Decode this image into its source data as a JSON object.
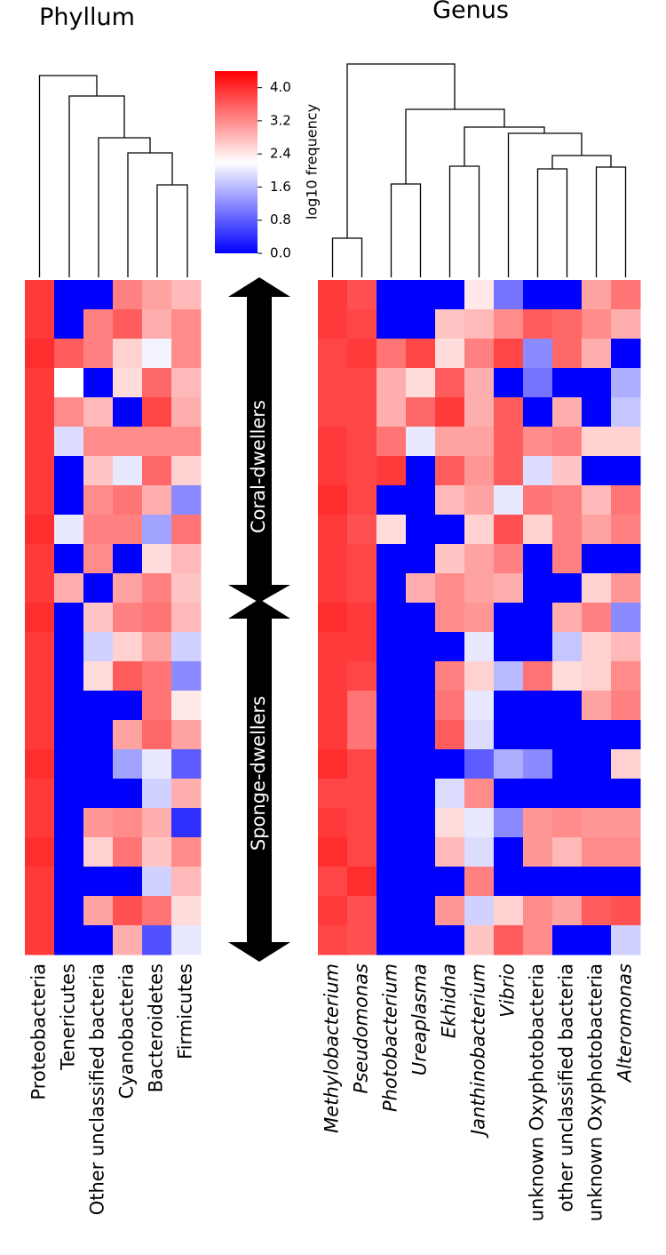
{
  "chart_data": [
    {
      "type": "heatmap",
      "title": "Phyllum",
      "series": [
        {
          "name": "Proteobacteria",
          "values": [
            3.9,
            3.9,
            4.0,
            3.9,
            3.9,
            3.9,
            3.9,
            3.9,
            4.0,
            3.9,
            3.9,
            4.0,
            3.9,
            3.9,
            3.9,
            3.9,
            4.0,
            3.9,
            3.9,
            4.0,
            3.9,
            3.9,
            3.9
          ]
        },
        {
          "name": "Tenericutes",
          "values": [
            0,
            0,
            3.6,
            2.2,
            3.2,
            1.9,
            0,
            0,
            2.0,
            0,
            2.9,
            0,
            0,
            0,
            0,
            0,
            0,
            0,
            0,
            0,
            0,
            0,
            0
          ]
        },
        {
          "name": "Other unclassified bacteria",
          "values": [
            0,
            3.3,
            3.3,
            0,
            2.8,
            3.2,
            2.7,
            3.2,
            3.3,
            3.2,
            0,
            2.7,
            1.8,
            2.5,
            0,
            0,
            0,
            0,
            3.1,
            2.6,
            0,
            3.0,
            0
          ]
        },
        {
          "name": "Cyanobacteria",
          "values": [
            3.3,
            3.6,
            2.6,
            2.5,
            0,
            3.2,
            2.0,
            3.4,
            3.3,
            0,
            3.0,
            3.3,
            2.6,
            3.6,
            0,
            3.0,
            1.4,
            0,
            3.2,
            3.4,
            0,
            3.7,
            2.9
          ]
        },
        {
          "name": "Bacteroidetes",
          "values": [
            3.0,
            2.9,
            2.1,
            3.5,
            3.8,
            3.2,
            3.5,
            2.9,
            1.4,
            2.5,
            3.3,
            3.4,
            3.0,
            3.4,
            3.4,
            3.5,
            2.0,
            1.8,
            2.9,
            2.7,
            1.8,
            3.4,
            0.7
          ]
        },
        {
          "name": "Firmicutes",
          "values": [
            2.8,
            3.2,
            3.2,
            2.8,
            2.9,
            3.2,
            2.6,
            1.2,
            3.4,
            2.8,
            2.7,
            2.8,
            1.8,
            1.2,
            2.4,
            3.0,
            0.8,
            2.9,
            0.4,
            3.2,
            2.8,
            2.5,
            2.0
          ]
        }
      ]
    },
    {
      "type": "heatmap",
      "title": "Genus",
      "series": [
        {
          "name": "Methylobacterium",
          "values": [
            3.9,
            3.9,
            3.8,
            3.8,
            3.8,
            3.9,
            3.9,
            4.0,
            3.9,
            3.9,
            3.9,
            4.0,
            3.9,
            3.9,
            3.9,
            3.9,
            4.0,
            3.8,
            3.9,
            4.0,
            3.8,
            3.9,
            3.8
          ]
        },
        {
          "name": "Pseudomonas",
          "values": [
            3.7,
            3.8,
            3.9,
            3.8,
            3.8,
            3.8,
            3.8,
            3.8,
            3.7,
            3.8,
            3.8,
            3.9,
            3.9,
            3.8,
            3.4,
            3.4,
            3.8,
            3.8,
            3.8,
            3.8,
            4.0,
            3.7,
            3.7
          ]
        },
        {
          "name": "Photobacterium",
          "values": [
            0,
            0,
            3.4,
            2.9,
            2.9,
            3.4,
            3.9,
            0,
            2.5,
            0,
            0,
            0,
            0,
            0,
            0,
            0,
            0,
            0,
            0,
            0,
            0,
            0,
            0
          ]
        },
        {
          "name": "Ureaplasma",
          "values": [
            0,
            0,
            3.8,
            2.5,
            3.5,
            2.0,
            0,
            0,
            0,
            0,
            2.9,
            0,
            0,
            0,
            0,
            0,
            0,
            0,
            0,
            0,
            0,
            0,
            0
          ]
        },
        {
          "name": "Ekhidna",
          "values": [
            0,
            2.7,
            2.5,
            3.6,
            3.9,
            3.0,
            3.6,
            2.8,
            0,
            2.7,
            3.2,
            3.2,
            0,
            3.3,
            3.4,
            3.6,
            0,
            1.9,
            2.5,
            2.8,
            0,
            3.1,
            0
          ]
        },
        {
          "name": "Janthinobacterium",
          "values": [
            2.4,
            2.8,
            3.3,
            2.9,
            2.9,
            3.0,
            3.1,
            3.0,
            2.6,
            3.0,
            3.0,
            3.1,
            2.0,
            2.6,
            2.0,
            1.9,
            0.8,
            3.2,
            2.0,
            1.9,
            3.3,
            1.8,
            2.7
          ]
        },
        {
          "name": "Vibrio",
          "values": [
            1.0,
            3.2,
            3.8,
            0,
            3.6,
            3.6,
            3.6,
            2.0,
            3.7,
            3.3,
            2.9,
            0,
            0,
            1.6,
            0,
            0,
            1.5,
            0,
            1.2,
            0,
            0,
            2.6,
            3.6
          ]
        },
        {
          "name": "unknown Oxyphotobacteria",
          "values": [
            0,
            3.6,
            1.2,
            1.0,
            0,
            3.2,
            1.9,
            3.4,
            2.6,
            0,
            0,
            0,
            0,
            3.4,
            0,
            0,
            1.2,
            0,
            3.1,
            3.1,
            0,
            3.2,
            3.2
          ]
        },
        {
          "name": "other unclassified bacteria",
          "values": [
            0,
            3.5,
            3.5,
            0,
            2.9,
            3.3,
            2.7,
            3.3,
            3.3,
            3.3,
            0,
            2.9,
            1.7,
            2.5,
            0,
            0,
            0,
            0,
            3.2,
            2.8,
            0,
            3.0,
            0
          ]
        },
        {
          "name": "unknown Oxyphotobacteria",
          "values": [
            3.0,
            3.2,
            2.9,
            0,
            0,
            2.6,
            0,
            2.8,
            3.0,
            0,
            2.6,
            3.3,
            2.6,
            2.6,
            3.0,
            0,
            0,
            0,
            3.1,
            3.2,
            0,
            3.6,
            0
          ]
        },
        {
          "name": "Alteromonas",
          "values": [
            3.4,
            2.9,
            0,
            1.5,
            1.7,
            2.6,
            0,
            3.4,
            3.3,
            0,
            3.1,
            1.2,
            2.8,
            3.2,
            3.3,
            0,
            2.6,
            0,
            3.1,
            3.2,
            0,
            3.7,
            1.8
          ]
        }
      ]
    }
  ],
  "colorbar": {
    "label": "log10 frequency",
    "zlim": [
      0,
      4.4
    ],
    "colors": [
      "#0000ff",
      "#ffffff",
      "#ff0000"
    ],
    "ticks": [
      {
        "value": 0,
        "label": "0.0"
      },
      0.8,
      1.6,
      2.4,
      3.2,
      {
        "value": 4,
        "label": "4.0"
      }
    ]
  },
  "groups": [
    "Coral-dwellers",
    "Sponge-dwellers"
  ]
}
